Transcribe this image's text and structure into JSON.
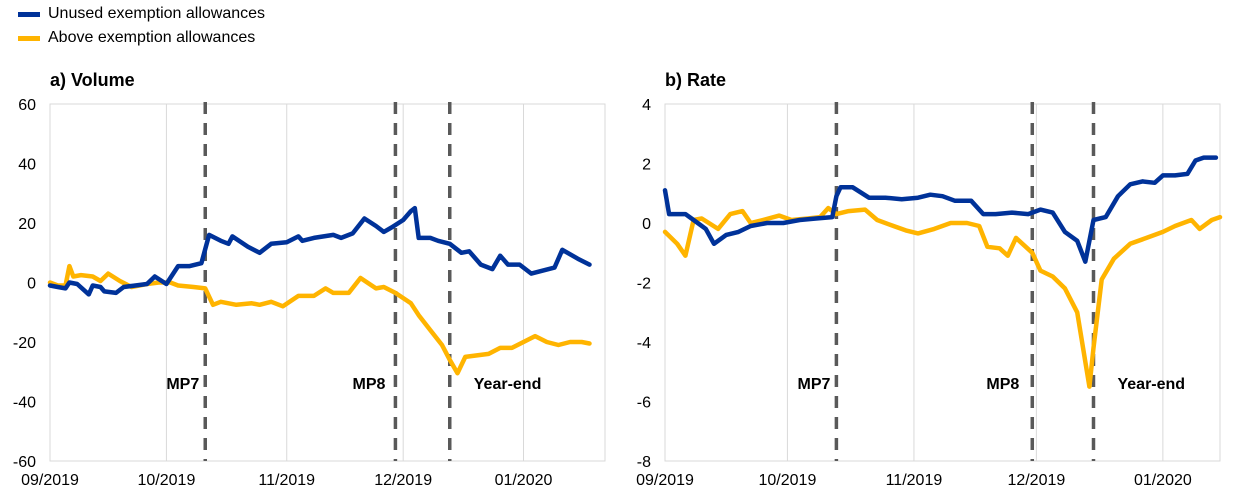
{
  "legend": {
    "items": [
      {
        "label": "Unused exemption allowances",
        "color": "#003299"
      },
      {
        "label": "Above exemption allowances",
        "color": "#FFB400"
      }
    ]
  },
  "chart_data": [
    {
      "type": "line",
      "title": "a) Volume",
      "xlabel": "",
      "ylabel": "",
      "ylim": [
        -60,
        60
      ],
      "yticks": [
        60,
        40,
        20,
        0,
        -20,
        -40,
        -60
      ],
      "xlim": [
        "2019-09-01",
        "2020-01-22"
      ],
      "xticks": [
        {
          "date": "2019-09-01",
          "label": "09/2019"
        },
        {
          "date": "2019-10-01",
          "label": "10/2019"
        },
        {
          "date": "2019-11-01",
          "label": "11/2019"
        },
        {
          "date": "2019-12-01",
          "label": "12/2019"
        },
        {
          "date": "2020-01-01",
          "label": "01/2020"
        }
      ],
      "grid": "vertical",
      "event_lines": [
        {
          "date": "2019-10-11",
          "label": "MP7"
        },
        {
          "date": "2019-11-29",
          "label": "MP8"
        },
        {
          "date": "2019-12-13",
          "label": "Year-end"
        }
      ],
      "series": [
        {
          "name": "Unused exemption allowances",
          "color": "#003299",
          "points": [
            [
              "2019-09-01",
              -1
            ],
            [
              "2019-09-03",
              -1.5
            ],
            [
              "2019-09-05",
              -2
            ],
            [
              "2019-09-06",
              0
            ],
            [
              "2019-09-08",
              -0.5
            ],
            [
              "2019-09-11",
              -4
            ],
            [
              "2019-09-12",
              -1
            ],
            [
              "2019-09-14",
              -1.5
            ],
            [
              "2019-09-15",
              -3
            ],
            [
              "2019-09-18",
              -3.5
            ],
            [
              "2019-09-20",
              -1.5
            ],
            [
              "2019-09-23",
              -1
            ],
            [
              "2019-09-26",
              -0.5
            ],
            [
              "2019-09-28",
              2
            ],
            [
              "2019-10-01",
              -0.5
            ],
            [
              "2019-10-04",
              5.5
            ],
            [
              "2019-10-07",
              5.5
            ],
            [
              "2019-10-10",
              6.5
            ],
            [
              "2019-10-12",
              16
            ],
            [
              "2019-10-15",
              14
            ],
            [
              "2019-10-17",
              13
            ],
            [
              "2019-10-18",
              15.5
            ],
            [
              "2019-10-22",
              12
            ],
            [
              "2019-10-25",
              10
            ],
            [
              "2019-10-28",
              13
            ],
            [
              "2019-11-01",
              13.5
            ],
            [
              "2019-11-04",
              15.5
            ],
            [
              "2019-11-05",
              14
            ],
            [
              "2019-11-08",
              15
            ],
            [
              "2019-11-13",
              16
            ],
            [
              "2019-11-15",
              15
            ],
            [
              "2019-11-18",
              16.5
            ],
            [
              "2019-11-21",
              21.5
            ],
            [
              "2019-11-24",
              19
            ],
            [
              "2019-11-26",
              17
            ],
            [
              "2019-11-28",
              18.5
            ],
            [
              "2019-12-01",
              21
            ],
            [
              "2019-12-03",
              24
            ],
            [
              "2019-12-04",
              25
            ],
            [
              "2019-12-05",
              15
            ],
            [
              "2019-12-08",
              15
            ],
            [
              "2019-12-10",
              14
            ],
            [
              "2019-12-13",
              13
            ],
            [
              "2019-12-16",
              10
            ],
            [
              "2019-12-18",
              10.5
            ],
            [
              "2019-12-21",
              6
            ],
            [
              "2019-12-24",
              4.5
            ],
            [
              "2019-12-26",
              9
            ],
            [
              "2019-12-28",
              6
            ],
            [
              "2019-12-31",
              6
            ],
            [
              "2020-01-03",
              3
            ],
            [
              "2020-01-06",
              4
            ],
            [
              "2020-01-09",
              5
            ],
            [
              "2020-01-11",
              11
            ],
            [
              "2020-01-15",
              8
            ],
            [
              "2020-01-18",
              6
            ]
          ]
        },
        {
          "name": "Above exemption allowances",
          "color": "#FFB400",
          "points": [
            [
              "2019-09-01",
              0
            ],
            [
              "2019-09-03",
              -1
            ],
            [
              "2019-09-05",
              -1
            ],
            [
              "2019-09-06",
              5.5
            ],
            [
              "2019-09-07",
              2
            ],
            [
              "2019-09-09",
              2.5
            ],
            [
              "2019-09-12",
              2
            ],
            [
              "2019-09-14",
              0.5
            ],
            [
              "2019-09-16",
              3
            ],
            [
              "2019-09-19",
              0.5
            ],
            [
              "2019-09-22",
              -1.5
            ],
            [
              "2019-09-26",
              -0.5
            ],
            [
              "2019-09-29",
              0
            ],
            [
              "2019-10-02",
              0
            ],
            [
              "2019-10-04",
              -1
            ],
            [
              "2019-10-08",
              -1.5
            ],
            [
              "2019-10-11",
              -2
            ],
            [
              "2019-10-13",
              -7.5
            ],
            [
              "2019-10-15",
              -6.5
            ],
            [
              "2019-10-19",
              -7.5
            ],
            [
              "2019-10-23",
              -7
            ],
            [
              "2019-10-25",
              -7.5
            ],
            [
              "2019-10-28",
              -6.5
            ],
            [
              "2019-10-31",
              -8
            ],
            [
              "2019-11-04",
              -4.5
            ],
            [
              "2019-11-08",
              -4.5
            ],
            [
              "2019-11-11",
              -2
            ],
            [
              "2019-11-13",
              -3.5
            ],
            [
              "2019-11-17",
              -3.5
            ],
            [
              "2019-11-20",
              1.5
            ],
            [
              "2019-11-24",
              -2
            ],
            [
              "2019-11-26",
              -1.5
            ],
            [
              "2019-11-29",
              -3.5
            ],
            [
              "2019-12-03",
              -7
            ],
            [
              "2019-12-05",
              -11
            ],
            [
              "2019-12-08",
              -16
            ],
            [
              "2019-12-11",
              -21
            ],
            [
              "2019-12-13",
              -26
            ],
            [
              "2019-12-15",
              -30.5
            ],
            [
              "2019-12-17",
              -25
            ],
            [
              "2019-12-20",
              -24.5
            ],
            [
              "2019-12-23",
              -24
            ],
            [
              "2019-12-26",
              -22
            ],
            [
              "2019-12-29",
              -22
            ],
            [
              "2020-01-01",
              -20
            ],
            [
              "2020-01-04",
              -18
            ],
            [
              "2020-01-07",
              -20
            ],
            [
              "2020-01-10",
              -21
            ],
            [
              "2020-01-13",
              -20
            ],
            [
              "2020-01-16",
              -20
            ],
            [
              "2020-01-18",
              -20.5
            ]
          ]
        }
      ]
    },
    {
      "type": "line",
      "title": "b) Rate",
      "xlabel": "",
      "ylabel": "",
      "ylim": [
        -8,
        4
      ],
      "yticks": [
        4,
        2,
        0,
        -2,
        -4,
        -6,
        -8
      ],
      "xlim": [
        "2019-09-01",
        "2020-01-15"
      ],
      "xticks": [
        {
          "date": "2019-09-01",
          "label": "09/2019"
        },
        {
          "date": "2019-10-01",
          "label": "10/2019"
        },
        {
          "date": "2019-11-01",
          "label": "11/2019"
        },
        {
          "date": "2019-12-01",
          "label": "12/2019"
        },
        {
          "date": "2020-01-01",
          "label": "01/2020"
        }
      ],
      "grid": "vertical",
      "event_lines": [
        {
          "date": "2019-10-13",
          "label": "MP7"
        },
        {
          "date": "2019-11-30",
          "label": "MP8"
        },
        {
          "date": "2019-12-15",
          "label": "Year-end"
        }
      ],
      "series": [
        {
          "name": "Unused exemption allowances",
          "color": "#003299",
          "points": [
            [
              "2019-09-01",
              1.1
            ],
            [
              "2019-09-02",
              0.3
            ],
            [
              "2019-09-04",
              0.3
            ],
            [
              "2019-09-06",
              0.3
            ],
            [
              "2019-09-08",
              0.1
            ],
            [
              "2019-09-11",
              -0.2
            ],
            [
              "2019-09-13",
              -0.7
            ],
            [
              "2019-09-16",
              -0.4
            ],
            [
              "2019-09-19",
              -0.3
            ],
            [
              "2019-09-22",
              -0.1
            ],
            [
              "2019-09-26",
              0
            ],
            [
              "2019-09-30",
              0
            ],
            [
              "2019-10-04",
              0.1
            ],
            [
              "2019-10-08",
              0.15
            ],
            [
              "2019-10-12",
              0.2
            ],
            [
              "2019-10-13",
              0.9
            ],
            [
              "2019-10-14",
              1.2
            ],
            [
              "2019-10-17",
              1.2
            ],
            [
              "2019-10-21",
              0.85
            ],
            [
              "2019-10-25",
              0.85
            ],
            [
              "2019-10-29",
              0.8
            ],
            [
              "2019-11-02",
              0.85
            ],
            [
              "2019-11-05",
              0.95
            ],
            [
              "2019-11-08",
              0.9
            ],
            [
              "2019-11-11",
              0.75
            ],
            [
              "2019-11-15",
              0.75
            ],
            [
              "2019-11-18",
              0.3
            ],
            [
              "2019-11-21",
              0.3
            ],
            [
              "2019-11-25",
              0.35
            ],
            [
              "2019-11-29",
              0.3
            ],
            [
              "2019-12-02",
              0.45
            ],
            [
              "2019-12-05",
              0.35
            ],
            [
              "2019-12-08",
              -0.3
            ],
            [
              "2019-12-11",
              -0.6
            ],
            [
              "2019-12-13",
              -1.3
            ],
            [
              "2019-12-15",
              0.1
            ],
            [
              "2019-12-18",
              0.2
            ],
            [
              "2019-12-21",
              0.9
            ],
            [
              "2019-12-24",
              1.3
            ],
            [
              "2019-12-27",
              1.4
            ],
            [
              "2019-12-30",
              1.35
            ],
            [
              "2020-01-01",
              1.6
            ],
            [
              "2020-01-04",
              1.6
            ],
            [
              "2020-01-07",
              1.65
            ],
            [
              "2020-01-09",
              2.1
            ],
            [
              "2020-01-11",
              2.2
            ],
            [
              "2020-01-14",
              2.2
            ]
          ]
        },
        {
          "name": "Above exemption allowances",
          "color": "#FFB400",
          "points": [
            [
              "2019-09-01",
              -0.3
            ],
            [
              "2019-09-04",
              -0.7
            ],
            [
              "2019-09-06",
              -1.1
            ],
            [
              "2019-09-08",
              0.1
            ],
            [
              "2019-09-10",
              0.15
            ],
            [
              "2019-09-14",
              -0.2
            ],
            [
              "2019-09-17",
              0.3
            ],
            [
              "2019-09-20",
              0.4
            ],
            [
              "2019-09-22",
              0
            ],
            [
              "2019-09-25",
              0.1
            ],
            [
              "2019-09-29",
              0.25
            ],
            [
              "2019-10-02",
              0.1
            ],
            [
              "2019-10-06",
              0.15
            ],
            [
              "2019-10-09",
              0.2
            ],
            [
              "2019-10-11",
              0.5
            ],
            [
              "2019-10-13",
              0.3
            ],
            [
              "2019-10-16",
              0.4
            ],
            [
              "2019-10-20",
              0.45
            ],
            [
              "2019-10-23",
              0.1
            ],
            [
              "2019-10-27",
              -0.1
            ],
            [
              "2019-10-30",
              -0.25
            ],
            [
              "2019-11-02",
              -0.35
            ],
            [
              "2019-11-06",
              -0.2
            ],
            [
              "2019-11-10",
              0
            ],
            [
              "2019-11-14",
              0
            ],
            [
              "2019-11-17",
              -0.1
            ],
            [
              "2019-11-19",
              -0.8
            ],
            [
              "2019-11-22",
              -0.85
            ],
            [
              "2019-11-24",
              -1.1
            ],
            [
              "2019-11-26",
              -0.5
            ],
            [
              "2019-11-30",
              -1
            ],
            [
              "2019-12-02",
              -1.6
            ],
            [
              "2019-12-05",
              -1.8
            ],
            [
              "2019-12-08",
              -2.2
            ],
            [
              "2019-12-11",
              -3
            ],
            [
              "2019-12-14",
              -5.5
            ],
            [
              "2019-12-15",
              -4.2
            ],
            [
              "2019-12-17",
              -1.9
            ],
            [
              "2019-12-20",
              -1.2
            ],
            [
              "2019-12-24",
              -0.7
            ],
            [
              "2019-12-28",
              -0.5
            ],
            [
              "2020-01-01",
              -0.3
            ],
            [
              "2020-01-04",
              -0.1
            ],
            [
              "2020-01-08",
              0.1
            ],
            [
              "2020-01-10",
              -0.2
            ],
            [
              "2020-01-13",
              0.1
            ],
            [
              "2020-01-15",
              0.2
            ]
          ]
        }
      ]
    }
  ]
}
